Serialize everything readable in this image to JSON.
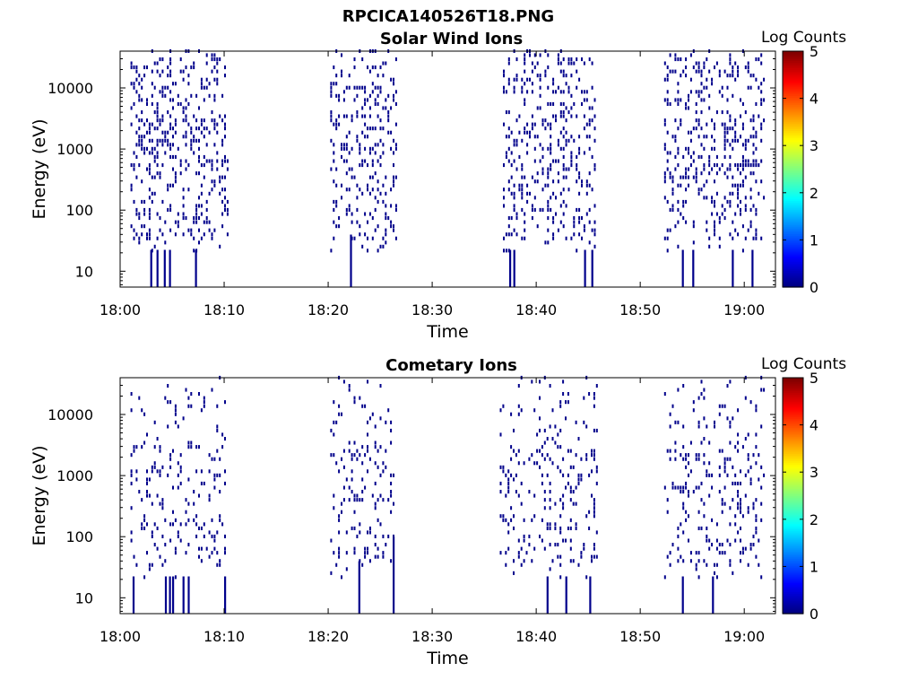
{
  "figure_title": "RPCICA140526T18.PNG",
  "chart_data": [
    {
      "type": "heatmap",
      "title": "Solar Wind Ions",
      "xlabel": "Time",
      "ylabel": "Energy (eV)",
      "x_range": [
        "18:00",
        "19:03"
      ],
      "y_range_eV": [
        5.5,
        40000
      ],
      "y_scale": "log",
      "x_ticks": [
        "18:00",
        "18:10",
        "18:20",
        "18:30",
        "18:40",
        "18:50",
        "19:00"
      ],
      "y_ticks": [
        "10",
        "100",
        "1000",
        "10000"
      ],
      "grid": false,
      "colorbar": {
        "title": "Log Counts",
        "ticks": [
          "0",
          "1",
          "2",
          "3",
          "4",
          "5"
        ],
        "colormap": "jet",
        "range": [
          0,
          5
        ]
      },
      "data_intervals_min": [
        [
          1,
          10.5
        ],
        [
          20.2,
          26.5
        ],
        [
          36.8,
          45.8
        ],
        [
          52.3,
          62.0
        ]
      ],
      "seed": 11,
      "density_per_decade": [
        0.15,
        0.35,
        0.45,
        0.35,
        0.3,
        0.25
      ],
      "column_spikes": [
        {
          "t": 2.9,
          "log_min": 0.74,
          "log_max": 1.35
        },
        {
          "t": 3.5,
          "log_min": 0.74,
          "log_max": 1.35
        },
        {
          "t": 4.2,
          "log_min": 0.74,
          "log_max": 1.35
        },
        {
          "t": 4.7,
          "log_min": 0.74,
          "log_max": 1.35
        },
        {
          "t": 7.2,
          "log_min": 0.74,
          "log_max": 1.35
        },
        {
          "t": 22.1,
          "log_min": 0.74,
          "log_max": 1.6
        },
        {
          "t": 37.4,
          "log_min": 0.74,
          "log_max": 1.35
        },
        {
          "t": 37.8,
          "log_min": 0.74,
          "log_max": 1.35
        },
        {
          "t": 44.6,
          "log_min": 0.74,
          "log_max": 1.35
        },
        {
          "t": 45.3,
          "log_min": 0.74,
          "log_max": 1.35
        },
        {
          "t": 54.0,
          "log_min": 0.74,
          "log_max": 1.35
        },
        {
          "t": 55.0,
          "log_min": 0.74,
          "log_max": 1.35
        },
        {
          "t": 58.8,
          "log_min": 0.74,
          "log_max": 1.35
        },
        {
          "t": 60.7,
          "log_min": 0.74,
          "log_max": 1.35
        }
      ]
    },
    {
      "type": "heatmap",
      "title": "Cometary Ions",
      "xlabel": "Time",
      "ylabel": "Energy (eV)",
      "x_range": [
        "18:00",
        "19:03"
      ],
      "y_range_eV": [
        5.5,
        40000
      ],
      "y_scale": "log",
      "x_ticks": [
        "18:00",
        "18:10",
        "18:20",
        "18:30",
        "18:40",
        "18:50",
        "19:00"
      ],
      "y_ticks": [
        "10",
        "100",
        "1000",
        "10000"
      ],
      "grid": false,
      "colorbar": {
        "title": "Log Counts",
        "ticks": [
          "0",
          "1",
          "2",
          "3",
          "4",
          "5"
        ],
        "colormap": "jet",
        "range": [
          0,
          5
        ]
      },
      "data_intervals_min": [
        [
          1,
          10.5
        ],
        [
          20.2,
          26.3
        ],
        [
          36.5,
          45.8
        ],
        [
          52.3,
          62.0
        ]
      ],
      "seed": 29,
      "density_per_decade": [
        0.08,
        0.25,
        0.3,
        0.15,
        0.08,
        0.05
      ],
      "column_spikes": [
        {
          "t": 1.2,
          "log_min": 0.74,
          "log_max": 1.35
        },
        {
          "t": 4.3,
          "log_min": 0.74,
          "log_max": 1.35
        },
        {
          "t": 4.7,
          "log_min": 0.74,
          "log_max": 1.35
        },
        {
          "t": 5.0,
          "log_min": 0.74,
          "log_max": 1.35
        },
        {
          "t": 6.0,
          "log_min": 0.74,
          "log_max": 1.35
        },
        {
          "t": 6.5,
          "log_min": 0.74,
          "log_max": 1.35
        },
        {
          "t": 10.0,
          "log_min": 0.74,
          "log_max": 1.35
        },
        {
          "t": 22.9,
          "log_min": 0.74,
          "log_max": 1.6
        },
        {
          "t": 26.2,
          "log_min": 0.74,
          "log_max": 2.0
        },
        {
          "t": 41.0,
          "log_min": 0.74,
          "log_max": 1.35
        },
        {
          "t": 42.8,
          "log_min": 0.74,
          "log_max": 1.35
        },
        {
          "t": 45.1,
          "log_min": 0.74,
          "log_max": 1.35
        },
        {
          "t": 54.0,
          "log_min": 0.74,
          "log_max": 1.35
        },
        {
          "t": 56.9,
          "log_min": 0.74,
          "log_max": 1.35
        }
      ]
    }
  ]
}
